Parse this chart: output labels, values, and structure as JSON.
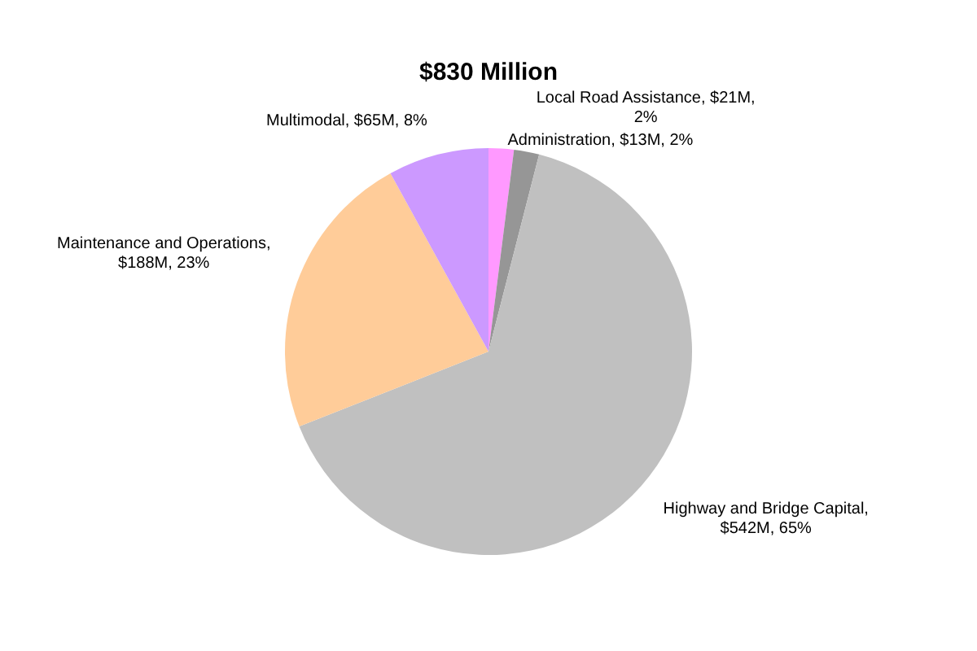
{
  "chart_data": {
    "type": "pie",
    "title": "$830 Million",
    "categories": [
      "Administration, $13M, 2%",
      "Local Road Assistance, $21M, 2%",
      "Highway and Bridge Capital, $542M, 65%",
      "Maintenance and Operations, $188M, 23%",
      "Multimodal, $65M, 8%"
    ],
    "values": [
      2,
      2,
      65,
      23,
      8
    ],
    "colors": [
      "#ff99ff",
      "#969696",
      "#c0c0c0",
      "#ffcc99",
      "#cc99ff"
    ],
    "legend": false
  }
}
